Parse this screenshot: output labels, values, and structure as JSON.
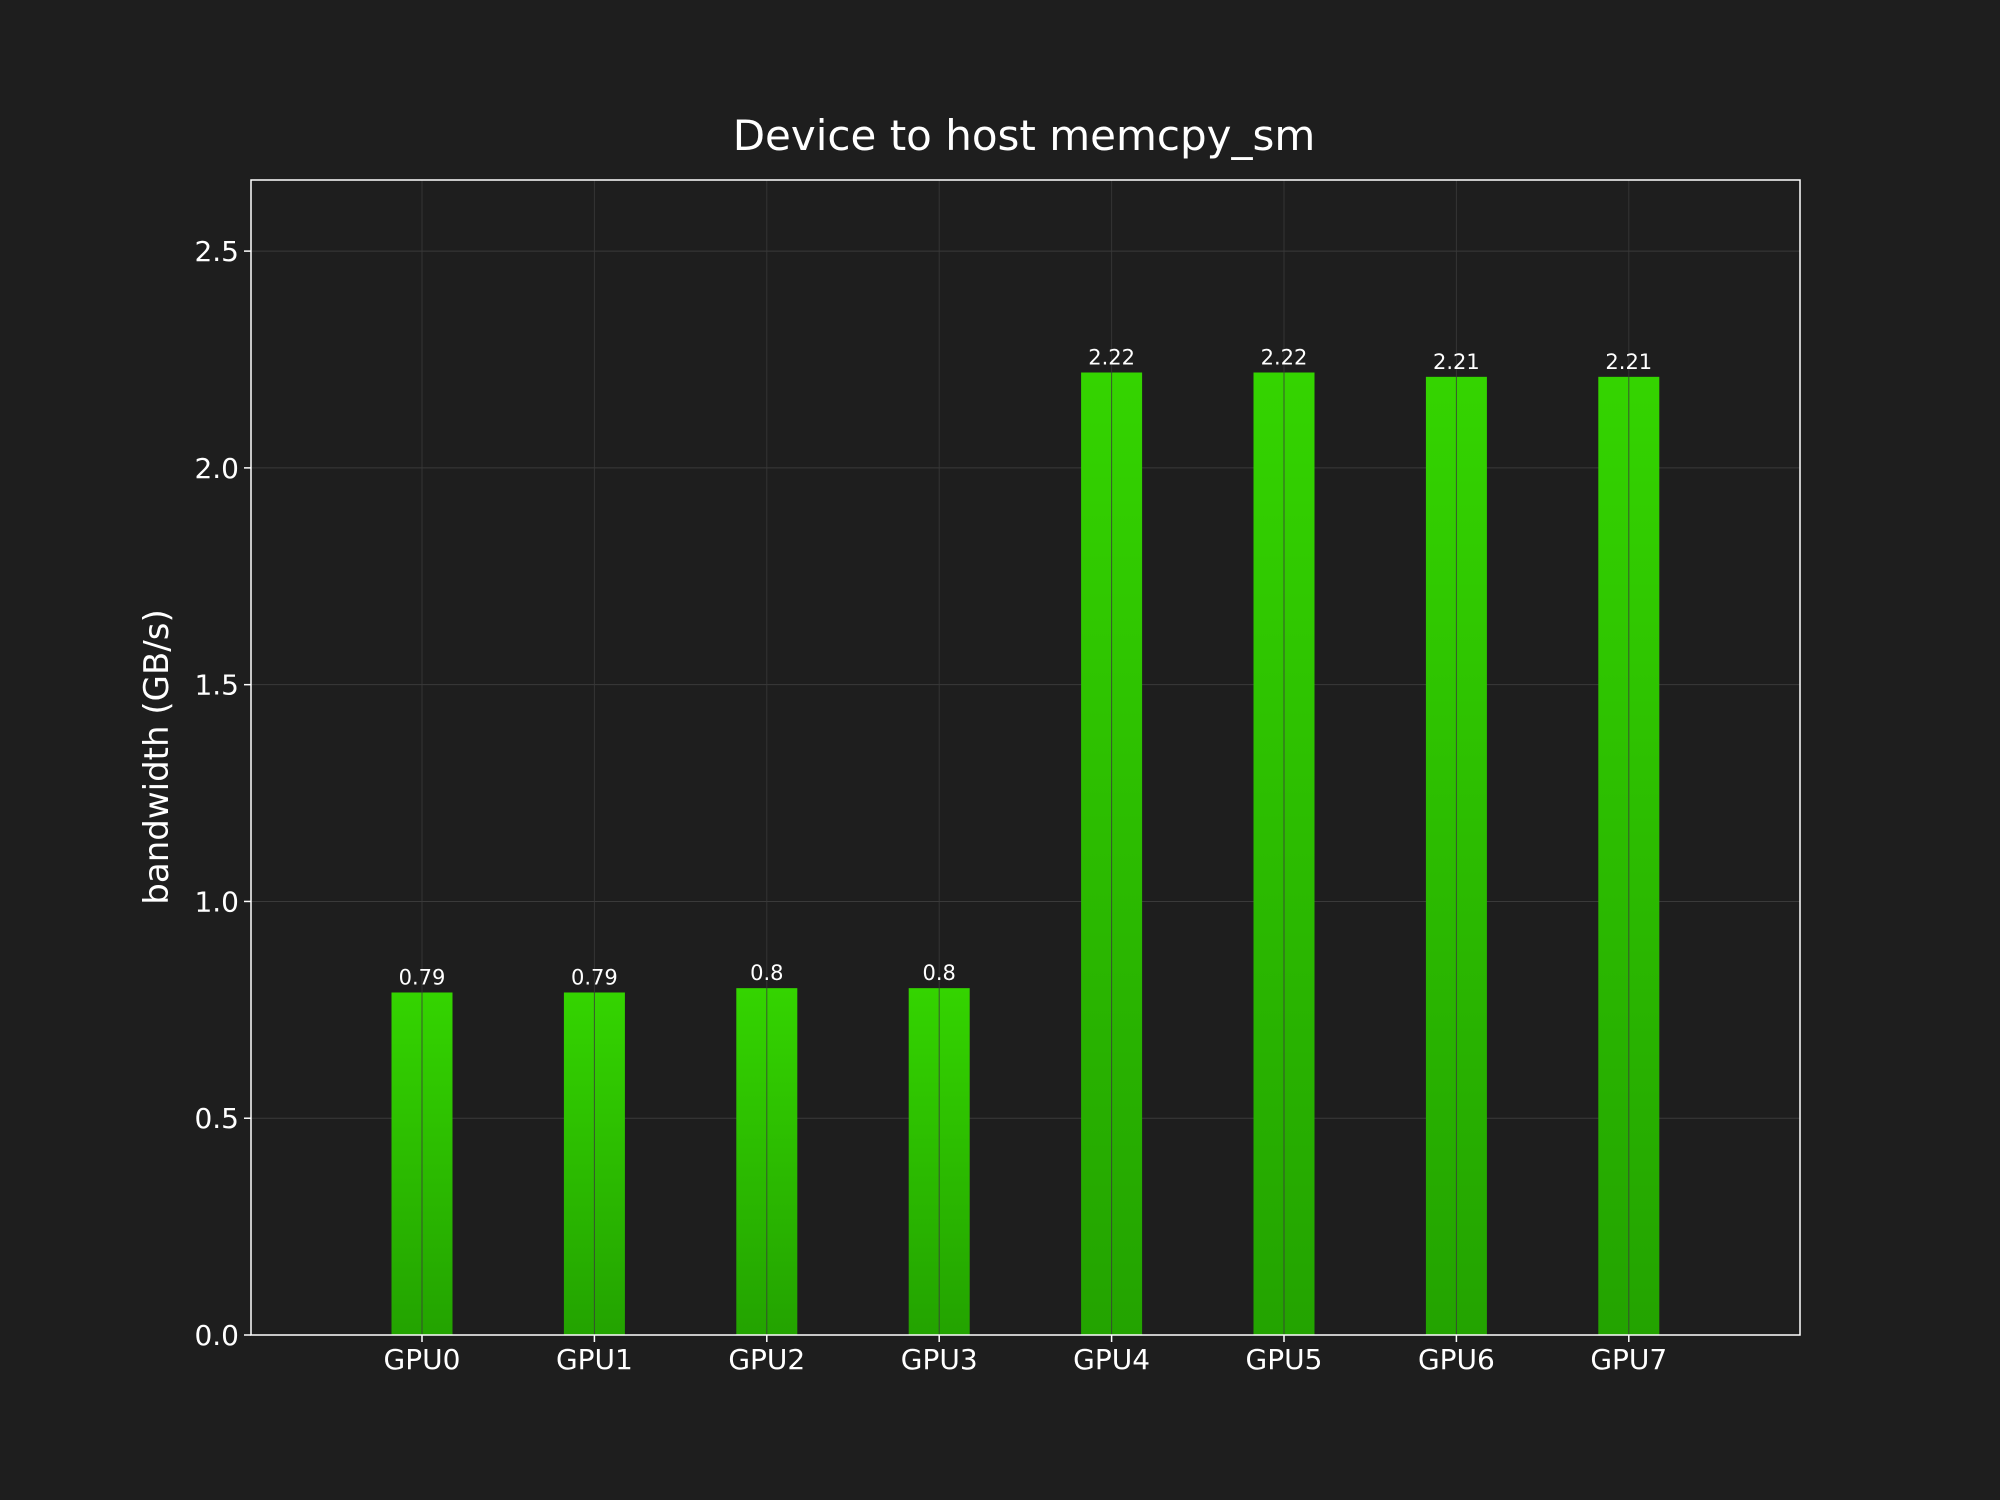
{
  "colors": {
    "background": "#1e1e1e",
    "bar_top": "#34d400",
    "bar_bottom": "#23a300",
    "grid": "#3a3a3a",
    "axes": "#ffffff",
    "text": "#ffffff"
  },
  "chart_data": {
    "type": "bar",
    "title": "Device to host memcpy_sm",
    "xlabel": "",
    "ylabel": "bandwidth (GB/s)",
    "categories": [
      "GPU0",
      "GPU1",
      "GPU2",
      "GPU3",
      "GPU4",
      "GPU5",
      "GPU6",
      "GPU7"
    ],
    "values": [
      0.79,
      0.79,
      0.8,
      0.8,
      2.22,
      2.22,
      2.21,
      2.21
    ],
    "data_labels": [
      "0.79",
      "0.79",
      "0.8",
      "0.8",
      "2.22",
      "2.22",
      "2.21",
      "2.21"
    ],
    "ylim": [
      0,
      2.664
    ],
    "yticks": [
      0.0,
      0.5,
      1.0,
      1.5,
      2.0,
      2.5
    ],
    "ytick_labels": [
      "0.0",
      "0.5",
      "1.0",
      "1.5",
      "2.0",
      "2.5"
    ],
    "grid": true,
    "legend": "none"
  }
}
